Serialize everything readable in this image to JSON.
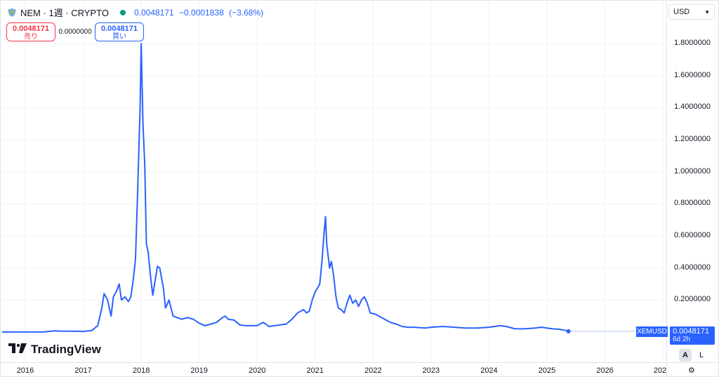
{
  "legend": {
    "title": "NEM · 1週 · CRYPTO",
    "last": "0.0048171",
    "change": "−0.0001838",
    "change_pct": "(−3.68%)"
  },
  "trade": {
    "sell_price": "0.0048171",
    "sell_label": "売り",
    "spread": "0.0000000",
    "buy_price": "0.0048171",
    "buy_label": "買い"
  },
  "currency": {
    "selected": "USD"
  },
  "price_label": {
    "symbol": "XEMUSD",
    "value": "0.0048171",
    "countdown": "6d 2h"
  },
  "watermark": "TradingView",
  "scale_buttons": {
    "auto": "A",
    "log": "L"
  },
  "colors": {
    "line": "#2962ff",
    "sell": "#f23645",
    "buy": "#2962ff",
    "status": "#089981"
  },
  "chart_data": {
    "type": "line",
    "x_tick_labels": [
      "2016",
      "2017",
      "2018",
      "2019",
      "2020",
      "2021",
      "2022",
      "2023",
      "2024",
      "2025",
      "2026",
      "202"
    ],
    "y_tick_labels": [
      "0.2000000",
      "0.4000000",
      "0.6000000",
      "0.8000000",
      "1.0000000",
      "1.2000000",
      "1.4000000",
      "1.6000000",
      "1.8000000"
    ],
    "ylim": [
      0,
      1.85
    ],
    "xlim": [
      2015.6,
      2026.9
    ],
    "series": [
      {
        "values": [
          [
            2015.6,
            0.0003
          ],
          [
            2016.0,
            0.0003
          ],
          [
            2016.3,
            0.0004
          ],
          [
            2016.5,
            0.008
          ],
          [
            2016.6,
            0.006
          ],
          [
            2016.9,
            0.005
          ],
          [
            2017.0,
            0.004
          ],
          [
            2017.15,
            0.01
          ],
          [
            2017.25,
            0.04
          ],
          [
            2017.32,
            0.15
          ],
          [
            2017.36,
            0.24
          ],
          [
            2017.42,
            0.2
          ],
          [
            2017.48,
            0.1
          ],
          [
            2017.52,
            0.22
          ],
          [
            2017.58,
            0.26
          ],
          [
            2017.62,
            0.3
          ],
          [
            2017.66,
            0.2
          ],
          [
            2017.72,
            0.22
          ],
          [
            2017.78,
            0.19
          ],
          [
            2017.82,
            0.22
          ],
          [
            2017.86,
            0.32
          ],
          [
            2017.9,
            0.45
          ],
          [
            2017.94,
            0.9
          ],
          [
            2017.98,
            1.4
          ],
          [
            2018.0,
            1.8
          ],
          [
            2018.03,
            1.3
          ],
          [
            2018.06,
            1.05
          ],
          [
            2018.09,
            0.55
          ],
          [
            2018.12,
            0.5
          ],
          [
            2018.16,
            0.35
          ],
          [
            2018.2,
            0.23
          ],
          [
            2018.24,
            0.32
          ],
          [
            2018.28,
            0.41
          ],
          [
            2018.32,
            0.4
          ],
          [
            2018.38,
            0.28
          ],
          [
            2018.42,
            0.15
          ],
          [
            2018.48,
            0.2
          ],
          [
            2018.55,
            0.1
          ],
          [
            2018.62,
            0.09
          ],
          [
            2018.7,
            0.08
          ],
          [
            2018.8,
            0.09
          ],
          [
            2018.9,
            0.08
          ],
          [
            2019.0,
            0.055
          ],
          [
            2019.1,
            0.04
          ],
          [
            2019.2,
            0.05
          ],
          [
            2019.3,
            0.06
          ],
          [
            2019.4,
            0.09
          ],
          [
            2019.45,
            0.1
          ],
          [
            2019.5,
            0.08
          ],
          [
            2019.6,
            0.075
          ],
          [
            2019.7,
            0.045
          ],
          [
            2019.8,
            0.04
          ],
          [
            2019.9,
            0.04
          ],
          [
            2020.0,
            0.04
          ],
          [
            2020.1,
            0.06
          ],
          [
            2020.15,
            0.05
          ],
          [
            2020.2,
            0.035
          ],
          [
            2020.3,
            0.04
          ],
          [
            2020.4,
            0.045
          ],
          [
            2020.5,
            0.05
          ],
          [
            2020.6,
            0.08
          ],
          [
            2020.7,
            0.12
          ],
          [
            2020.75,
            0.13
          ],
          [
            2020.8,
            0.14
          ],
          [
            2020.85,
            0.12
          ],
          [
            2020.9,
            0.13
          ],
          [
            2020.95,
            0.2
          ],
          [
            2021.0,
            0.25
          ],
          [
            2021.05,
            0.28
          ],
          [
            2021.08,
            0.3
          ],
          [
            2021.12,
            0.45
          ],
          [
            2021.15,
            0.6
          ],
          [
            2021.18,
            0.72
          ],
          [
            2021.2,
            0.55
          ],
          [
            2021.25,
            0.4
          ],
          [
            2021.28,
            0.44
          ],
          [
            2021.32,
            0.35
          ],
          [
            2021.36,
            0.22
          ],
          [
            2021.4,
            0.15
          ],
          [
            2021.45,
            0.14
          ],
          [
            2021.5,
            0.12
          ],
          [
            2021.55,
            0.18
          ],
          [
            2021.6,
            0.23
          ],
          [
            2021.65,
            0.18
          ],
          [
            2021.7,
            0.2
          ],
          [
            2021.75,
            0.16
          ],
          [
            2021.8,
            0.2
          ],
          [
            2021.85,
            0.22
          ],
          [
            2021.9,
            0.18
          ],
          [
            2021.95,
            0.12
          ],
          [
            2022.05,
            0.11
          ],
          [
            2022.1,
            0.1
          ],
          [
            2022.2,
            0.08
          ],
          [
            2022.3,
            0.06
          ],
          [
            2022.4,
            0.05
          ],
          [
            2022.5,
            0.035
          ],
          [
            2022.6,
            0.03
          ],
          [
            2022.7,
            0.03
          ],
          [
            2022.9,
            0.025
          ],
          [
            2023.0,
            0.03
          ],
          [
            2023.2,
            0.035
          ],
          [
            2023.4,
            0.03
          ],
          [
            2023.6,
            0.025
          ],
          [
            2023.8,
            0.025
          ],
          [
            2024.0,
            0.03
          ],
          [
            2024.2,
            0.04
          ],
          [
            2024.3,
            0.035
          ],
          [
            2024.45,
            0.02
          ],
          [
            2024.6,
            0.02
          ],
          [
            2024.8,
            0.025
          ],
          [
            2024.9,
            0.03
          ],
          [
            2025.0,
            0.025
          ],
          [
            2025.1,
            0.02
          ],
          [
            2025.2,
            0.018
          ],
          [
            2025.3,
            0.012
          ],
          [
            2025.37,
            0.0048
          ]
        ]
      }
    ]
  }
}
